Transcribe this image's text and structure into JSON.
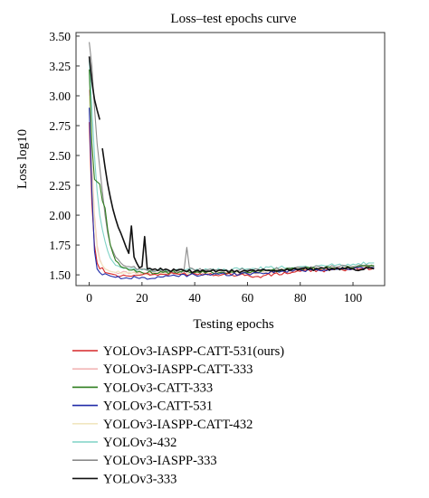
{
  "chart_data": {
    "type": "line",
    "title": "Loss–test epochs curve",
    "xlabel": "Testing epochs",
    "ylabel": "Loss log10",
    "xlim": [
      -5,
      112
    ],
    "ylim": [
      1.41,
      3.53
    ],
    "xticks": [
      "0",
      "20",
      "40",
      "60",
      "80",
      "100"
    ],
    "xtick_values": [
      0,
      20,
      40,
      60,
      80,
      100
    ],
    "yticks": [
      "1.50",
      "1.75",
      "2.00",
      "2.25",
      "2.50",
      "2.75",
      "3.00",
      "3.25",
      "3.50"
    ],
    "ytick_values": [
      1.5,
      1.75,
      2.0,
      2.25,
      2.5,
      2.75,
      3.0,
      3.25,
      3.5
    ],
    "grid": false,
    "legend_placement": "below plot",
    "series": [
      {
        "name": "YOLOv3-IASPP-CATT-531(ours)",
        "color": "#d62728",
        "keypoints": [
          [
            0,
            2.78
          ],
          [
            1,
            2.1
          ],
          [
            2,
            1.75
          ],
          [
            3,
            1.6
          ],
          [
            4,
            1.55
          ],
          [
            5,
            1.56
          ],
          [
            6,
            1.52
          ],
          [
            8,
            1.51
          ],
          [
            10,
            1.5
          ],
          [
            15,
            1.49
          ],
          [
            20,
            1.5
          ],
          [
            40,
            1.51
          ],
          [
            60,
            1.5
          ],
          [
            62,
            1.48
          ],
          [
            80,
            1.53
          ],
          [
            100,
            1.55
          ],
          [
            108,
            1.56
          ]
        ]
      },
      {
        "name": "YOLOv3-IASPP-CATT-333",
        "color": "#f2b6b6",
        "keypoints": [
          [
            0,
            3.05
          ],
          [
            1,
            2.45
          ],
          [
            2,
            2.0
          ],
          [
            3,
            1.75
          ],
          [
            4,
            1.63
          ],
          [
            5,
            1.58
          ],
          [
            6,
            1.55
          ],
          [
            8,
            1.53
          ],
          [
            10,
            1.52
          ],
          [
            20,
            1.51
          ],
          [
            40,
            1.52
          ],
          [
            60,
            1.51
          ],
          [
            80,
            1.54
          ],
          [
            100,
            1.56
          ],
          [
            108,
            1.57
          ]
        ]
      },
      {
        "name": "YOLOv3-CATT-333",
        "color": "#2e7d1e",
        "keypoints": [
          [
            0,
            3.22
          ],
          [
            1,
            2.6
          ],
          [
            2,
            2.3
          ],
          [
            3,
            2.28
          ],
          [
            4,
            2.26
          ],
          [
            5,
            2.12
          ],
          [
            6,
            2.06
          ],
          [
            7,
            1.88
          ],
          [
            8,
            1.75
          ],
          [
            9,
            1.68
          ],
          [
            10,
            1.62
          ],
          [
            12,
            1.57
          ],
          [
            15,
            1.54
          ],
          [
            20,
            1.52
          ],
          [
            40,
            1.52
          ],
          [
            60,
            1.52
          ],
          [
            80,
            1.55
          ],
          [
            100,
            1.56
          ],
          [
            108,
            1.57
          ]
        ]
      },
      {
        "name": "YOLOv3-CATT-531",
        "color": "#1f2aa8",
        "keypoints": [
          [
            0,
            2.9
          ],
          [
            1,
            2.2
          ],
          [
            2,
            1.7
          ],
          [
            3,
            1.55
          ],
          [
            4,
            1.52
          ],
          [
            5,
            1.5
          ],
          [
            6,
            1.51
          ],
          [
            8,
            1.49
          ],
          [
            10,
            1.48
          ],
          [
            15,
            1.47
          ],
          [
            20,
            1.48
          ],
          [
            25,
            1.47
          ],
          [
            30,
            1.49
          ],
          [
            40,
            1.5
          ],
          [
            60,
            1.51
          ],
          [
            80,
            1.54
          ],
          [
            100,
            1.55
          ],
          [
            108,
            1.56
          ]
        ]
      },
      {
        "name": "YOLOv3-IASPP-CATT-432",
        "color": "#f0e6c0",
        "keypoints": [
          [
            0,
            3.0
          ],
          [
            1,
            2.35
          ],
          [
            2,
            1.95
          ],
          [
            3,
            1.72
          ],
          [
            4,
            1.62
          ],
          [
            5,
            1.58
          ],
          [
            6,
            1.55
          ],
          [
            8,
            1.53
          ],
          [
            10,
            1.52
          ],
          [
            20,
            1.51
          ],
          [
            40,
            1.52
          ],
          [
            60,
            1.52
          ],
          [
            80,
            1.55
          ],
          [
            100,
            1.56
          ],
          [
            108,
            1.57
          ]
        ]
      },
      {
        "name": "YOLOv3-432",
        "color": "#7fd3c6",
        "keypoints": [
          [
            0,
            3.3
          ],
          [
            1,
            2.9
          ],
          [
            2,
            2.5
          ],
          [
            3,
            2.2
          ],
          [
            4,
            2.0
          ],
          [
            5,
            1.88
          ],
          [
            6,
            1.78
          ],
          [
            7,
            1.7
          ],
          [
            8,
            1.64
          ],
          [
            10,
            1.58
          ],
          [
            15,
            1.55
          ],
          [
            20,
            1.54
          ],
          [
            40,
            1.54
          ],
          [
            60,
            1.55
          ],
          [
            80,
            1.57
          ],
          [
            100,
            1.59
          ],
          [
            108,
            1.6
          ]
        ]
      },
      {
        "name": "YOLOv3-IASPP-333",
        "color": "#8a8a8a",
        "keypoints": [
          [
            0,
            3.45
          ],
          [
            1,
            3.25
          ],
          [
            2,
            2.9
          ],
          [
            3,
            2.6
          ],
          [
            4,
            2.4
          ],
          [
            5,
            2.2
          ],
          [
            6,
            2.0
          ],
          [
            7,
            1.85
          ],
          [
            8,
            1.75
          ],
          [
            10,
            1.65
          ],
          [
            12,
            1.6
          ],
          [
            15,
            1.57
          ],
          [
            20,
            1.55
          ],
          [
            30,
            1.53
          ],
          [
            35,
            1.52
          ],
          [
            36,
            1.55
          ],
          [
            37,
            1.73
          ],
          [
            38,
            1.56
          ],
          [
            40,
            1.54
          ],
          [
            60,
            1.54
          ],
          [
            80,
            1.56
          ],
          [
            100,
            1.57
          ],
          [
            108,
            1.58
          ]
        ]
      },
      {
        "name": "YOLOv3-333",
        "color": "#111111",
        "keypoints": [
          [
            0,
            3.33
          ],
          [
            1,
            3.12
          ],
          [
            2,
            2.97
          ],
          [
            3,
            2.88
          ],
          [
            4,
            2.8
          ],
          [
            null,
            null
          ],
          [
            5,
            2.56
          ],
          [
            6,
            2.4
          ],
          [
            7,
            2.26
          ],
          [
            8,
            2.15
          ],
          [
            9,
            2.05
          ],
          [
            10,
            1.97
          ],
          [
            11,
            1.9
          ],
          [
            12,
            1.85
          ],
          [
            13,
            1.79
          ],
          [
            14,
            1.73
          ],
          [
            15,
            1.68
          ],
          [
            16,
            1.91
          ],
          [
            17,
            1.65
          ],
          [
            18,
            1.6
          ],
          [
            19,
            1.56
          ],
          [
            20,
            1.57
          ],
          [
            21,
            1.82
          ],
          [
            22,
            1.55
          ],
          [
            25,
            1.55
          ],
          [
            30,
            1.54
          ],
          [
            40,
            1.53
          ],
          [
            60,
            1.53
          ],
          [
            80,
            1.55
          ],
          [
            100,
            1.55
          ],
          [
            108,
            1.55
          ]
        ]
      }
    ]
  }
}
